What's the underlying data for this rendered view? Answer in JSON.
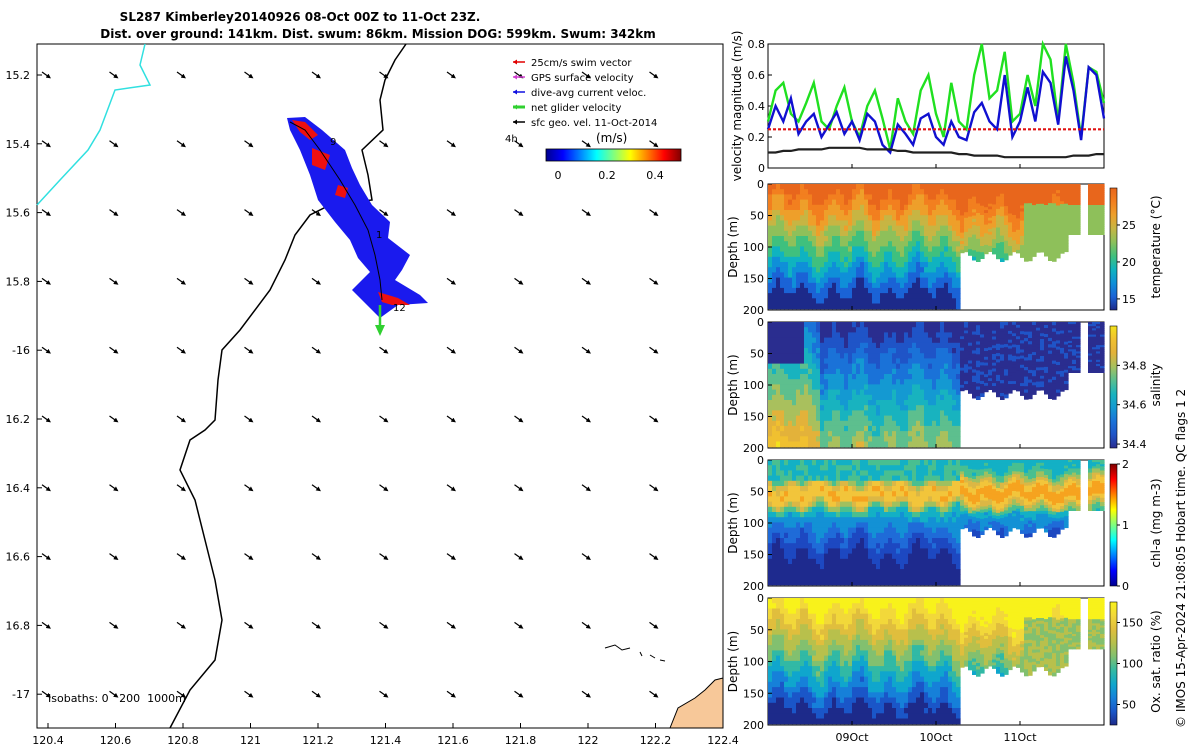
{
  "title_line1": "SL287 Kimberley20140926 08-Oct 00Z to 11-Oct 23Z.",
  "title_line2": "Dist. over ground: 141km. Dist. swum: 86km. Mission DOG: 599km. Swum: 342km",
  "map": {
    "lon_ticks": [
      "120.4",
      "120.6",
      "120.8",
      "121",
      "121.2",
      "121.4",
      "121.6",
      "121.8",
      "122",
      "122.2",
      "122.4"
    ],
    "lat_ticks": [
      "15.2",
      "15.4",
      "15.6",
      "15.8",
      "-16",
      "16.2",
      "16.4",
      "16.6",
      "16.8",
      "-17"
    ],
    "xlim": [
      120.38,
      122.42
    ],
    "ylim": [
      -17.08,
      -15.12
    ],
    "legend": [
      {
        "label": "25cm/s swim vector",
        "color": "#e00000"
      },
      {
        "label": "GPS surface velocity",
        "color": "#d040d0"
      },
      {
        "label": "dive-avg current veloc.",
        "color": "#1010e0"
      },
      {
        "label": "net glider velocity",
        "color": "#30d030"
      },
      {
        "label": "sfc geo. vel. 11-Oct-2014",
        "color": "#000000"
      }
    ],
    "legend_extra": "4h",
    "colorbar_label": "(m/s)",
    "colorbar_ticks": [
      "0",
      "0.2",
      "0.4"
    ],
    "track_labels": [
      "9",
      "1",
      "12"
    ],
    "isobath_label": "Isobaths: 0   200  1000m",
    "colors": {
      "coast": "#000000",
      "cyan_coast": "#30e0e0",
      "land": "#f7c899",
      "track": "#1a1aee",
      "hot": "#ee1010"
    }
  },
  "chart_data": [
    {
      "type": "line",
      "ylabel": "velocity magnitude (m/s)",
      "ylim": [
        0,
        0.8
      ],
      "yticks": [
        "0",
        "0.2",
        "0.4",
        "0.6",
        "0.8"
      ],
      "x_range_days": [
        0,
        4
      ],
      "series": [
        {
          "color": "#20e020",
          "values": [
            0.3,
            0.5,
            0.55,
            0.35,
            0.3,
            0.42,
            0.55,
            0.3,
            0.25,
            0.4,
            0.52,
            0.3,
            0.2,
            0.4,
            0.5,
            0.32,
            0.12,
            0.45,
            0.3,
            0.22,
            0.5,
            0.6,
            0.35,
            0.2,
            0.55,
            0.3,
            0.25,
            0.6,
            0.8,
            0.45,
            0.5,
            0.75,
            0.3,
            0.35,
            0.6,
            0.4,
            0.8,
            0.7,
            0.3,
            0.8,
            0.55,
            0.2,
            0.65,
            0.62,
            0.42
          ]
        },
        {
          "color": "#1010d0",
          "values": [
            0.25,
            0.4,
            0.3,
            0.45,
            0.22,
            0.3,
            0.35,
            0.2,
            0.28,
            0.36,
            0.22,
            0.3,
            0.18,
            0.35,
            0.3,
            0.15,
            0.1,
            0.28,
            0.22,
            0.15,
            0.32,
            0.35,
            0.2,
            0.15,
            0.3,
            0.2,
            0.18,
            0.36,
            0.42,
            0.3,
            0.25,
            0.6,
            0.2,
            0.3,
            0.52,
            0.3,
            0.62,
            0.55,
            0.28,
            0.72,
            0.5,
            0.18,
            0.65,
            0.6,
            0.32
          ]
        },
        {
          "color": "#e01010",
          "values": [
            0.25,
            0.25,
            0.25,
            0.25,
            0.25,
            0.25,
            0.25,
            0.25,
            0.25,
            0.25,
            0.25,
            0.25,
            0.25,
            0.25,
            0.25,
            0.25,
            0.25,
            0.25,
            0.25,
            0.25,
            0.25,
            0.25,
            0.25,
            0.25,
            0.25,
            0.25,
            0.25,
            0.25,
            0.25,
            0.25,
            0.25,
            0.25,
            0.25,
            0.25,
            0.25,
            0.25,
            0.25,
            0.25,
            0.25,
            0.25,
            0.25,
            0.25,
            0.25,
            0.25,
            0.25
          ]
        },
        {
          "color": "#202020",
          "values": [
            0.1,
            0.1,
            0.11,
            0.11,
            0.12,
            0.12,
            0.12,
            0.12,
            0.13,
            0.13,
            0.13,
            0.13,
            0.13,
            0.12,
            0.12,
            0.12,
            0.12,
            0.11,
            0.11,
            0.1,
            0.1,
            0.1,
            0.1,
            0.1,
            0.1,
            0.09,
            0.09,
            0.08,
            0.08,
            0.08,
            0.08,
            0.07,
            0.07,
            0.07,
            0.07,
            0.07,
            0.07,
            0.07,
            0.07,
            0.07,
            0.08,
            0.08,
            0.08,
            0.09,
            0.09
          ]
        }
      ]
    },
    {
      "type": "heatmap",
      "variable": "temperature",
      "cbar_label": "temperature (°C)",
      "cbar_ticks": [
        "15",
        "20",
        "25"
      ],
      "clim": [
        13.5,
        30
      ],
      "ylabel": "Depth (m)",
      "yticks": [
        "0",
        "50",
        "100",
        "150",
        "200"
      ],
      "ylim": [
        0,
        200
      ]
    },
    {
      "type": "heatmap",
      "variable": "salinity",
      "cbar_label": "salinity",
      "cbar_ticks": [
        "34.4",
        "34.6",
        "34.8"
      ],
      "clim": [
        34.38,
        35.0
      ],
      "ylabel": "Depth (m)",
      "yticks": [
        "0",
        "50",
        "100",
        "150",
        "200"
      ],
      "ylim": [
        0,
        200
      ]
    },
    {
      "type": "heatmap",
      "variable": "chl-a",
      "cbar_label": "chl-a (mg m-3)",
      "cbar_ticks": [
        "0",
        "1",
        "2"
      ],
      "clim": [
        0,
        2
      ],
      "ylabel": "Depth (m)",
      "yticks": [
        "0",
        "50",
        "100",
        "150",
        "200"
      ],
      "ylim": [
        0,
        200
      ]
    },
    {
      "type": "heatmap",
      "variable": "oxygen",
      "cbar_label": "Ox. sat. ratio (%)",
      "cbar_ticks": [
        "50",
        "100",
        "150"
      ],
      "clim": [
        25,
        175
      ],
      "ylabel": "Depth (m)",
      "yticks": [
        "0",
        "50",
        "100",
        "150",
        "200"
      ],
      "ylim": [
        0,
        200
      ],
      "xticks": [
        "09Oct",
        "10Oct",
        "11Oct"
      ]
    }
  ],
  "side_note": "© IMOS 15-Apr-2024 21:08:05 Hobart time. QC flags 1  2"
}
